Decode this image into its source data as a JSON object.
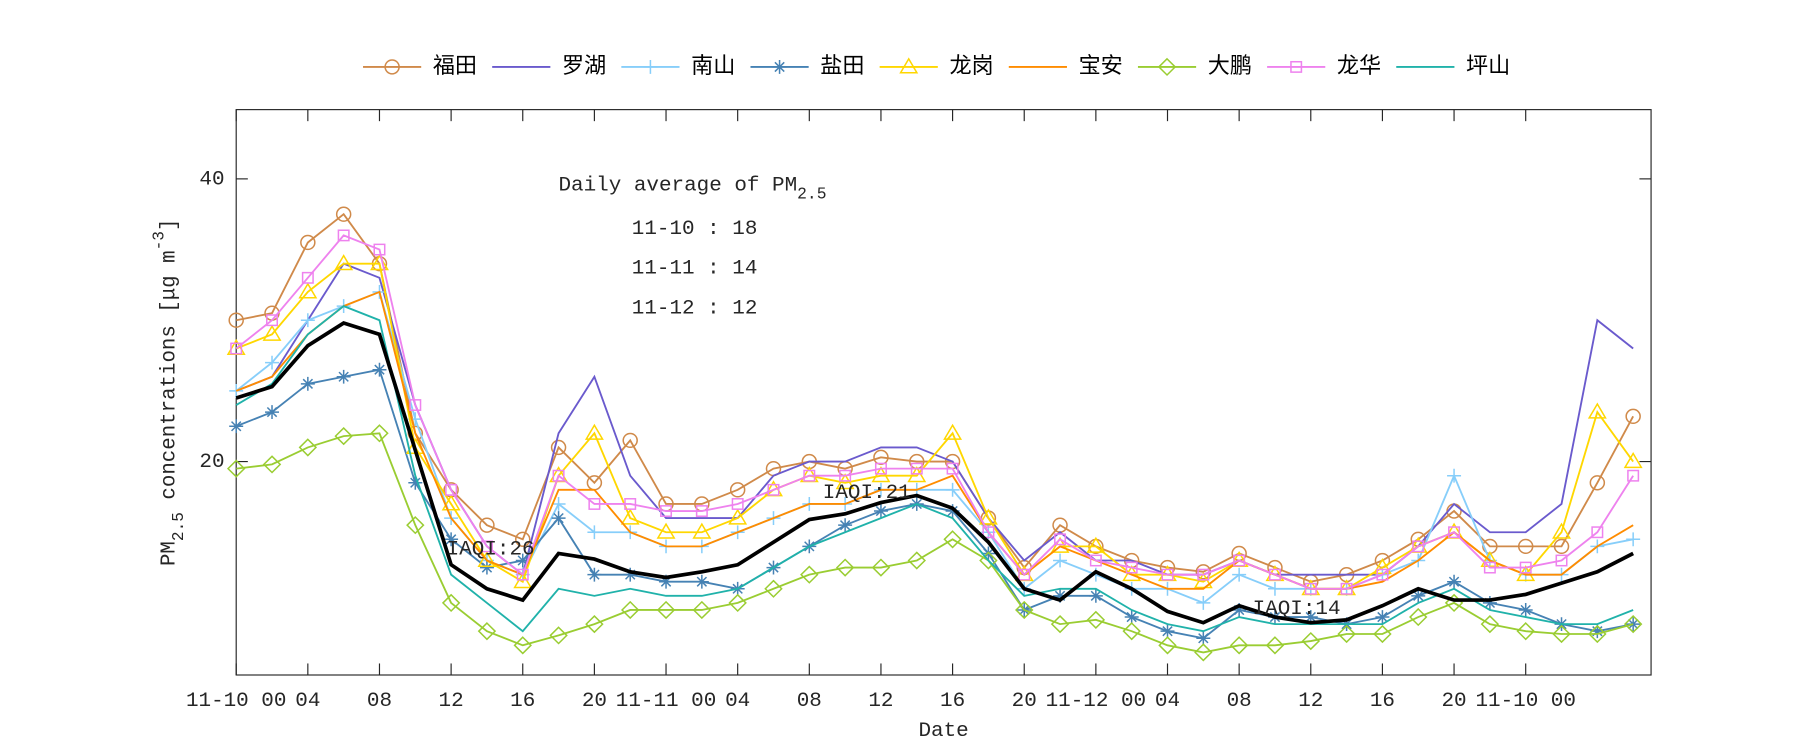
{
  "chart_data": {
    "type": "line",
    "x": [
      0,
      2,
      4,
      6,
      8,
      10,
      12,
      14,
      16,
      18,
      20,
      22,
      24,
      26,
      28,
      30,
      32,
      34,
      36,
      38,
      40,
      42,
      44,
      46,
      48,
      50,
      52,
      54,
      56,
      58,
      60,
      62,
      64,
      66,
      68,
      70,
      72,
      74,
      76,
      78
    ],
    "xlim": [
      0,
      79
    ],
    "xticks": [
      {
        "value": 0,
        "label": "11-10 00"
      },
      {
        "value": 4,
        "label": "04"
      },
      {
        "value": 8,
        "label": "08"
      },
      12,
      16,
      20,
      {
        "value": 24,
        "label": "11-11 00"
      },
      {
        "value": 28,
        "label": "04"
      },
      {
        "value": 32,
        "label": "08"
      },
      {
        "value": 36,
        "label": "12"
      },
      {
        "value": 40,
        "label": "16"
      },
      {
        "value": 44,
        "label": "20"
      },
      {
        "value": 48,
        "label": "11-12 00"
      },
      {
        "value": 52,
        "label": "04"
      },
      {
        "value": 56,
        "label": "08"
      },
      {
        "value": 60,
        "label": "12"
      },
      {
        "value": 64,
        "label": "16"
      },
      {
        "value": 68,
        "label": "20"
      },
      {
        "value": 72,
        "label": "11-10 00"
      }
    ],
    "ylim": [
      4.9,
      44.9
    ],
    "yticks": [
      20,
      40
    ],
    "xlabel": "Date",
    "ylabel_parts": [
      "PM",
      "2.5",
      " concentrations [μg m",
      "-3",
      "]"
    ],
    "annotation_title": [
      "Daily average of PM",
      "2.5"
    ],
    "annotations": [
      "11-10 : 18",
      "11-11 : 14",
      "11-12 : 12"
    ],
    "iaqi_labels": [
      {
        "text": "IAQI:26",
        "x": 15,
        "y": 13.8
      },
      {
        "text": "IAQI:21",
        "x": 36,
        "y": 17.8
      },
      {
        "text": "IAQI:14",
        "x": 60,
        "y": 9.6
      }
    ],
    "legend": "top",
    "series": [
      {
        "name": "福田",
        "color": "#d08a4a",
        "marker": "circle",
        "values": [
          30,
          30.5,
          35.5,
          37.5,
          34,
          22,
          18,
          15.5,
          14.5,
          21,
          18.5,
          21.5,
          17,
          17,
          18,
          19.5,
          20,
          19.5,
          20.3,
          20,
          20,
          16,
          12.5,
          15.5,
          14,
          13,
          12.5,
          12.2,
          13.5,
          12.5,
          11.5,
          12,
          13,
          14.5,
          16.5,
          14,
          14,
          14,
          18.5,
          23.2
        ]
      },
      {
        "name": "罗湖",
        "color": "#6a5acd",
        "marker": "none",
        "values": [
          25,
          26,
          30,
          34,
          33,
          24,
          18,
          14,
          12,
          22,
          26,
          19,
          16,
          16,
          16,
          19,
          20,
          20,
          21,
          21,
          20,
          16,
          13,
          15,
          13,
          13,
          12,
          12,
          13,
          12,
          12,
          12,
          12,
          14,
          17,
          15,
          15,
          17,
          30,
          28
        ]
      },
      {
        "name": "南山",
        "color": "#87cefa",
        "marker": "plus",
        "values": [
          25,
          27,
          30,
          31,
          32,
          23,
          16,
          13,
          12,
          17,
          15,
          15,
          14,
          14,
          15,
          16,
          17,
          17,
          18,
          18,
          18,
          15,
          11,
          13,
          12,
          11,
          11,
          10,
          12,
          11,
          11,
          11,
          12,
          13,
          19,
          13,
          12,
          12,
          14,
          14.5
        ]
      },
      {
        "name": "盐田",
        "color": "#4682b4",
        "marker": "star",
        "values": [
          22.5,
          23.5,
          25.5,
          26,
          26.5,
          18.5,
          14.5,
          12.5,
          13,
          16,
          12,
          12,
          11.5,
          11.5,
          11,
          12.5,
          14,
          15.5,
          16.5,
          17,
          16.5,
          13.5,
          9.5,
          10.5,
          10.5,
          9,
          8,
          7.5,
          9.5,
          9,
          9,
          8.5,
          9,
          10.5,
          11.5,
          10,
          9.5,
          8.5,
          8,
          8.5
        ]
      },
      {
        "name": "龙岗",
        "color": "#ffd700",
        "marker": "triangle",
        "values": [
          28,
          29,
          32,
          34,
          34,
          21,
          17,
          13,
          11.5,
          19,
          22,
          16,
          15,
          15,
          16,
          18,
          19,
          18.5,
          19,
          19,
          22,
          16,
          12,
          14,
          14,
          12,
          12,
          11.5,
          13,
          12,
          11,
          11,
          12.5,
          14,
          15,
          13,
          12,
          15,
          23.5,
          20
        ]
      },
      {
        "name": "宝安",
        "color": "#ff8c00",
        "marker": "none",
        "values": [
          25,
          26,
          29,
          31,
          32,
          22,
          16,
          13,
          12,
          18,
          18,
          15,
          14,
          14,
          15,
          16,
          17,
          17,
          18,
          18,
          19,
          15,
          12,
          14,
          13,
          12,
          11,
          11,
          13,
          12,
          11,
          11,
          11.5,
          13,
          15,
          13,
          12,
          12,
          14,
          15.5
        ]
      },
      {
        "name": "大鹏",
        "color": "#9acd32",
        "marker": "diamond",
        "values": [
          19.5,
          19.8,
          21,
          21.8,
          22,
          15.5,
          10,
          8,
          7,
          7.7,
          8.5,
          9.5,
          9.5,
          9.5,
          10,
          11,
          12,
          12.5,
          12.5,
          13,
          14.5,
          13,
          9.5,
          8.5,
          8.8,
          8,
          7,
          6.5,
          7,
          7,
          7.3,
          7.8,
          7.8,
          9,
          10,
          8.5,
          8,
          7.8,
          7.8,
          8.5
        ]
      },
      {
        "name": "龙华",
        "color": "#ee82ee",
        "marker": "square",
        "values": [
          28,
          30,
          33,
          36,
          35,
          24,
          18,
          14,
          12,
          19,
          17,
          17,
          16.5,
          16.5,
          17,
          18,
          19,
          19,
          19.5,
          19.5,
          19.5,
          15,
          12,
          14.5,
          13,
          12.5,
          12,
          12,
          13,
          12,
          11,
          11,
          12,
          14,
          15,
          12.5,
          12.5,
          13,
          15,
          19
        ]
      },
      {
        "name": "坪山",
        "color": "#20b2aa",
        "marker": "none",
        "values": [
          24,
          25.5,
          29,
          31,
          30,
          19,
          12,
          10,
          8,
          11,
          10.5,
          11,
          10.5,
          10.5,
          11,
          12.5,
          14,
          15,
          16,
          17,
          16,
          13,
          10.5,
          11,
          11,
          9.5,
          8.5,
          8,
          9,
          8.5,
          8.5,
          8.5,
          8.5,
          10,
          11,
          9.5,
          9,
          8.5,
          8.5,
          9.5
        ]
      },
      {
        "color": "#000000",
        "marker": "none",
        "values": [
          24.5,
          25.3,
          28.2,
          29.8,
          29,
          20.8,
          12.7,
          11,
          10.2,
          13.5,
          13.1,
          12.2,
          11.8,
          12.2,
          12.7,
          14.3,
          15.9,
          16.3,
          17.1,
          17.6,
          16.7,
          14.3,
          11,
          10.2,
          12.2,
          11,
          9.4,
          8.6,
          9.8,
          9,
          8.6,
          8.8,
          9.8,
          11,
          10.2,
          10.2,
          10.6,
          11.4,
          12.2,
          13.5
        ]
      }
    ]
  }
}
